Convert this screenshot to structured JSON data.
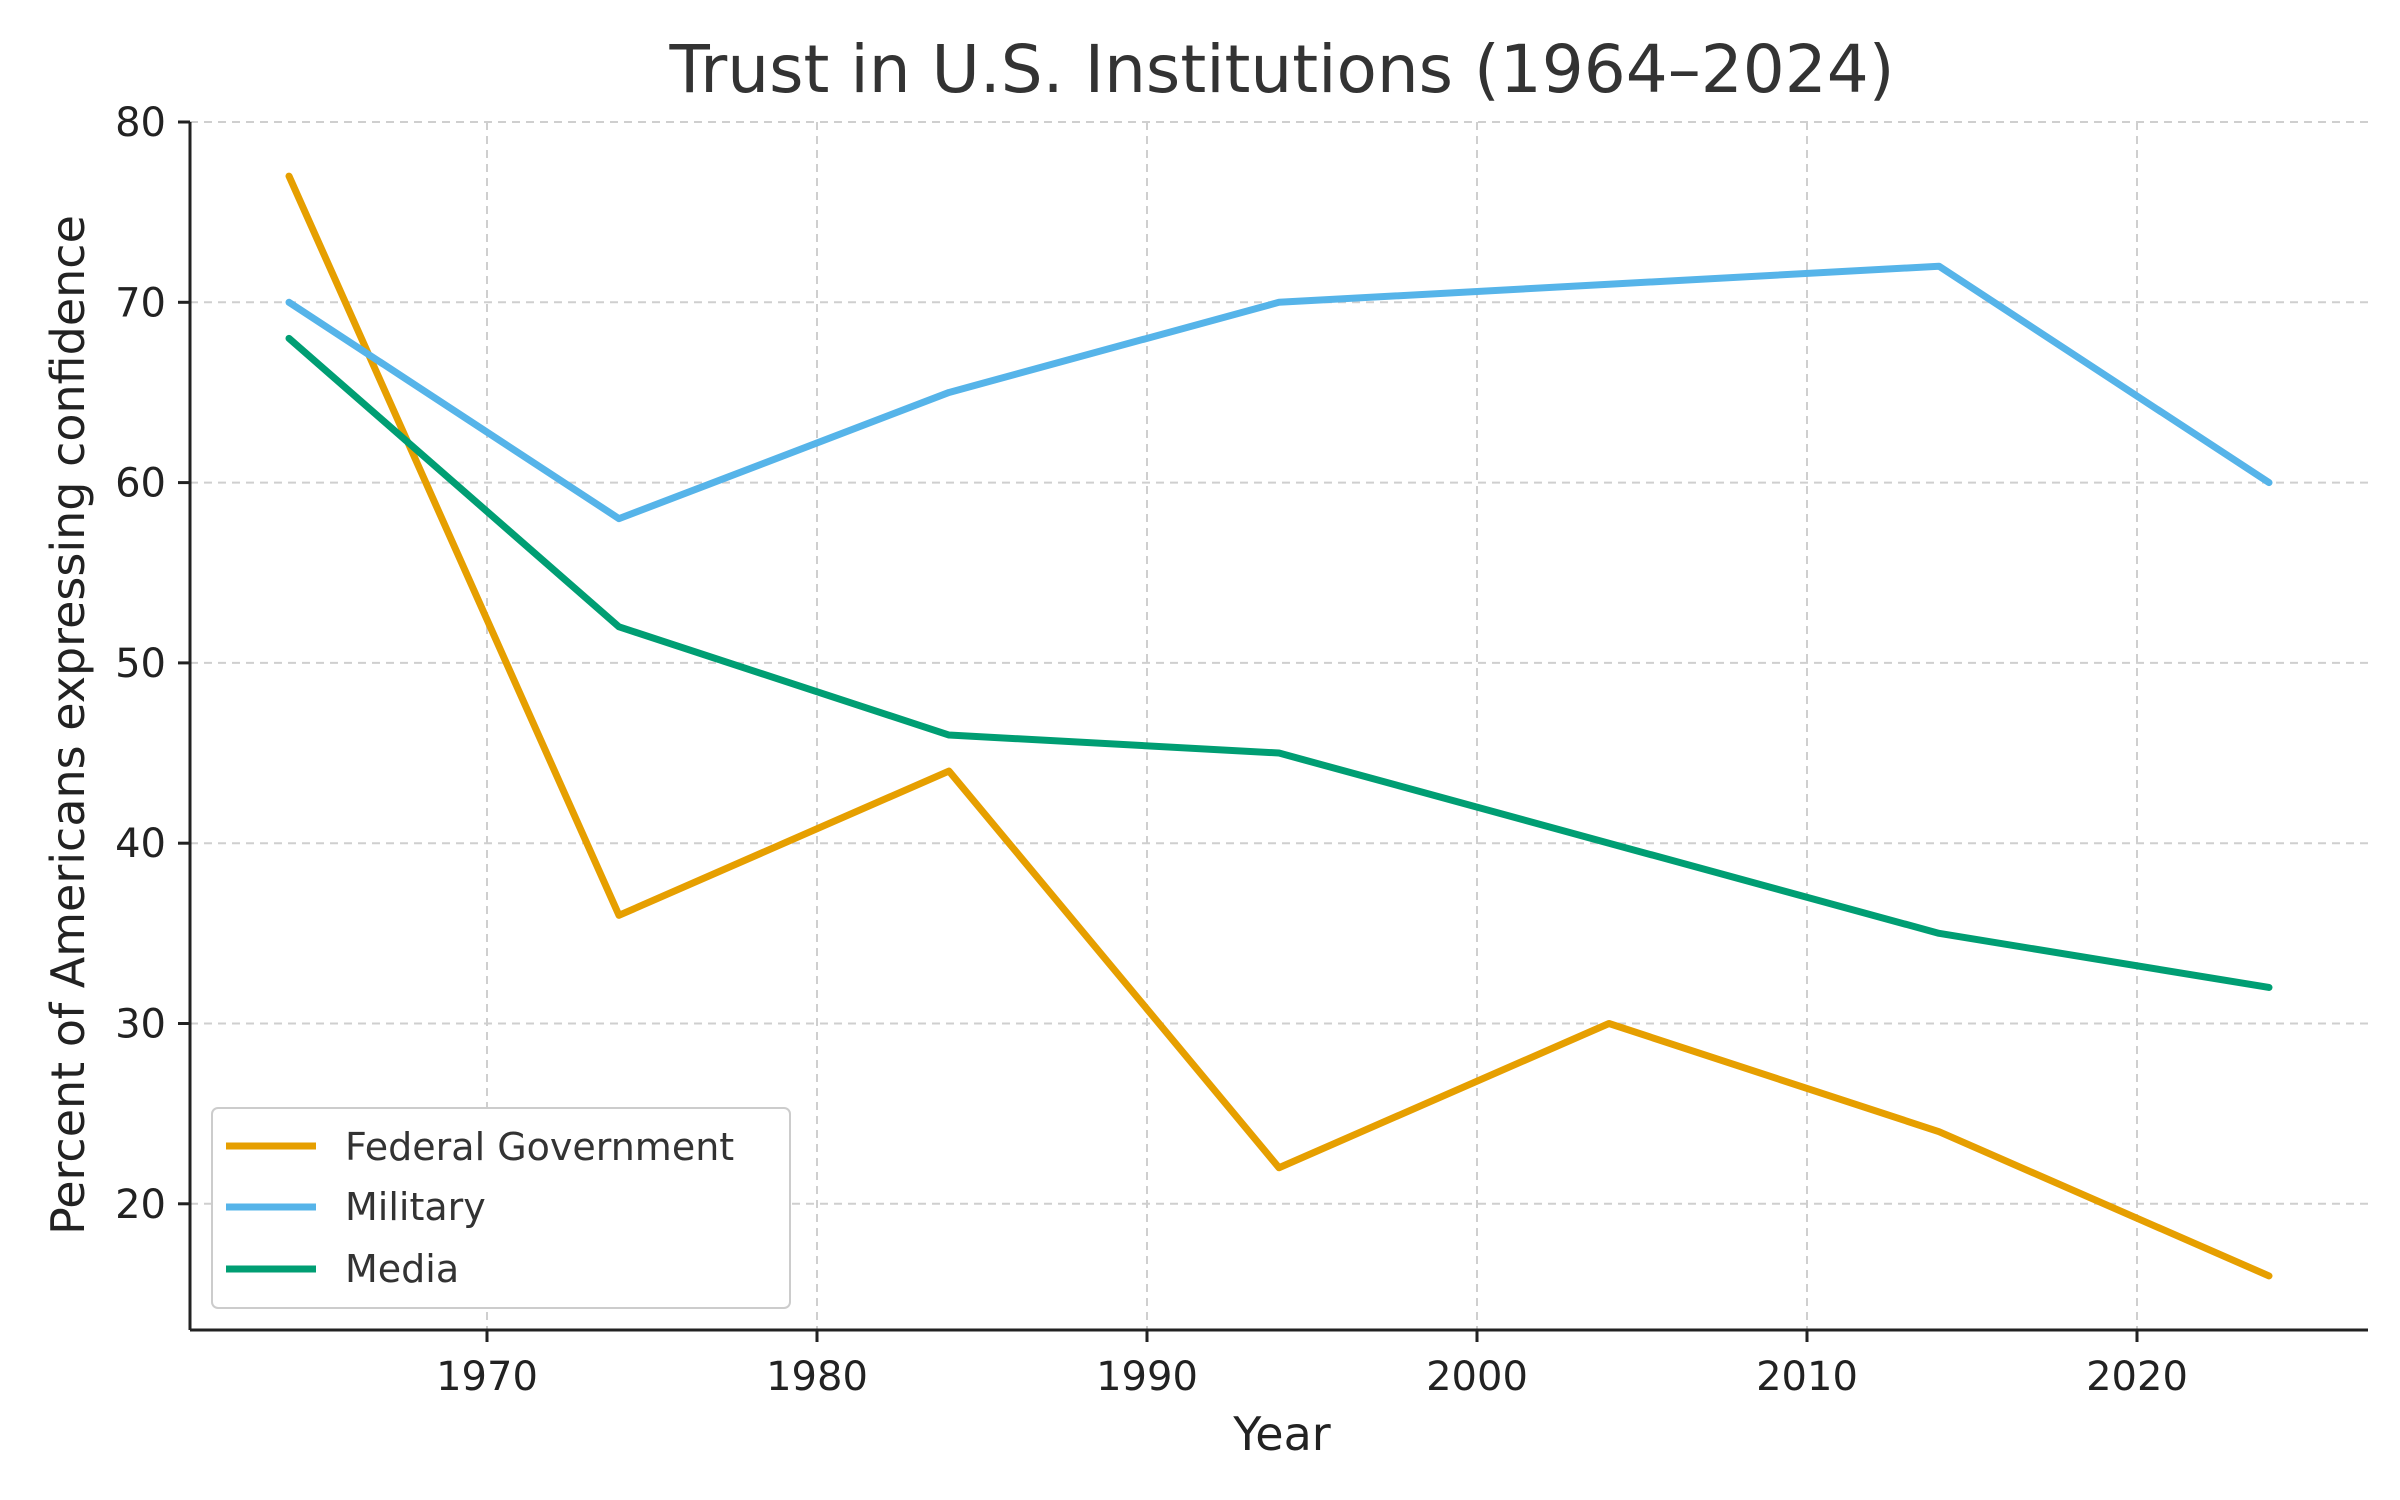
{
  "chart_data": {
    "type": "line",
    "title": "Trust in U.S. Institutions (1964–2024)",
    "xlabel": "Year",
    "ylabel": "Percent of Americans expressing confidence",
    "xlim": [
      1961,
      2027
    ],
    "ylim": [
      13,
      80
    ],
    "xticks": [
      1970,
      1980,
      1990,
      2000,
      2010,
      2020
    ],
    "yticks": [
      20,
      30,
      40,
      50,
      60,
      70,
      80
    ],
    "grid": true,
    "legend_position": "bottom-left",
    "x": [
      1964,
      1974,
      1984,
      1994,
      2004,
      2014,
      2024
    ],
    "series": [
      {
        "name": "Federal Government",
        "color": "#E69F00",
        "values": [
          77,
          36,
          44,
          22,
          30,
          24,
          16
        ]
      },
      {
        "name": "Military",
        "color": "#56B4E9",
        "values": [
          70,
          58,
          65,
          70,
          71,
          72,
          60
        ]
      },
      {
        "name": "Media",
        "color": "#009E73",
        "values": [
          68,
          52,
          46,
          45,
          40,
          35,
          32
        ]
      }
    ]
  }
}
